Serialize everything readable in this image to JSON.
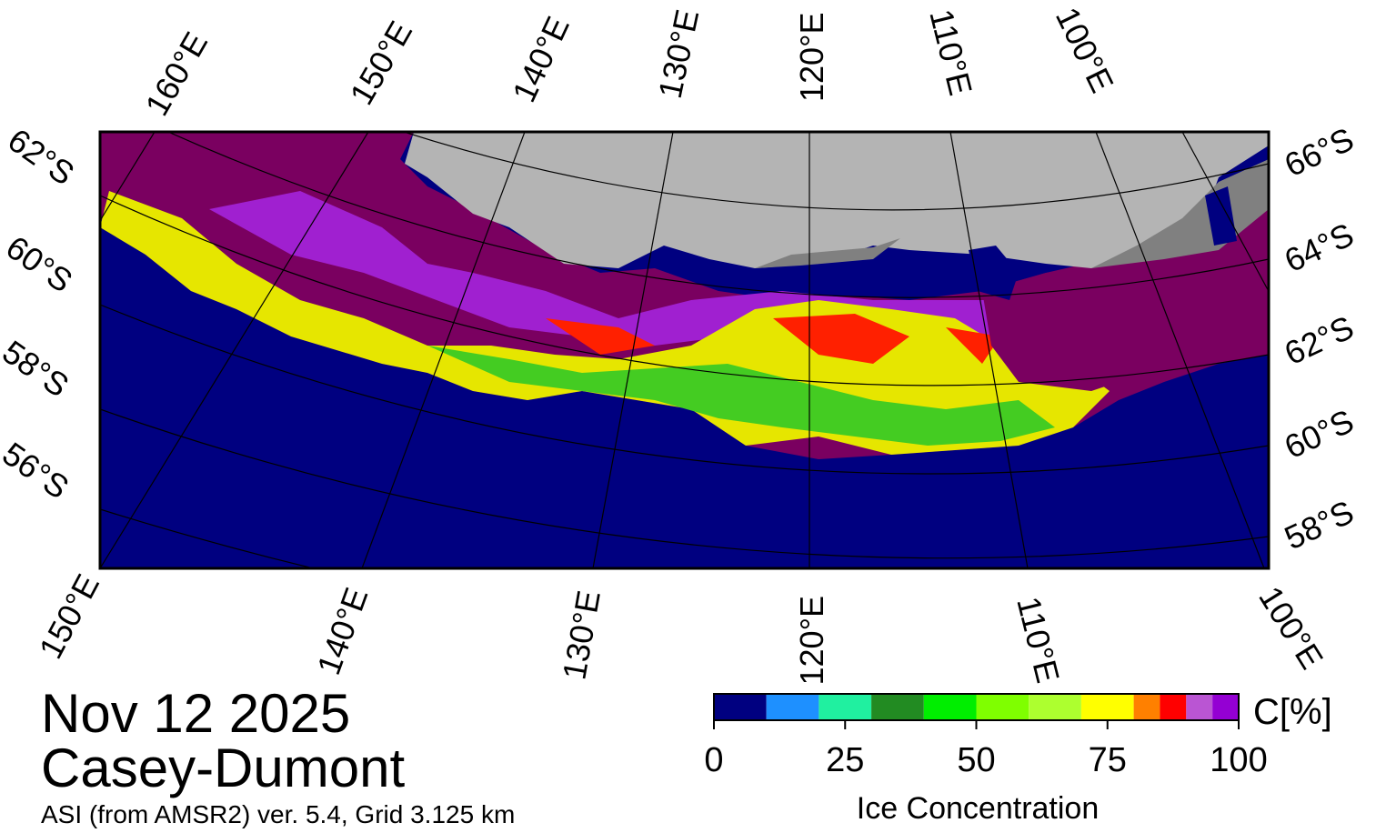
{
  "map": {
    "top_lon_labels": [
      "160°E",
      "150°E",
      "140°E",
      "130°E",
      "120°E",
      "110°E",
      "100°E"
    ],
    "bottom_lon_labels": [
      "150°E",
      "140°E",
      "130°E",
      "120°E",
      "110°E",
      "100°E"
    ],
    "left_lat_labels": [
      "62°S",
      "60°S",
      "58°S",
      "56°S"
    ],
    "right_lat_labels": [
      "66°S",
      "64°S",
      "62°S",
      "60°S",
      "58°S"
    ]
  },
  "date": "Nov 12 2025",
  "region": "Casey-Dumont",
  "source": "ASI (from AMSR2) ver. 5.4,  Grid 3.125 km",
  "colorbar": {
    "range": [
      0,
      100
    ],
    "ticks": [
      0,
      25,
      50,
      75,
      100
    ],
    "bins": [
      0,
      10,
      20,
      30,
      40,
      50,
      60,
      70,
      80,
      85,
      90,
      95,
      100
    ],
    "colors": [
      "#000080",
      "#1e90ff",
      "#20f0a0",
      "#228b22",
      "#00ee00",
      "#7fff00",
      "#adff2f",
      "#ffff00",
      "#ff8000",
      "#ff0000",
      "#ba55d3",
      "#9400d3"
    ],
    "unit": "C[%]",
    "label": "Ice Concentration"
  }
}
